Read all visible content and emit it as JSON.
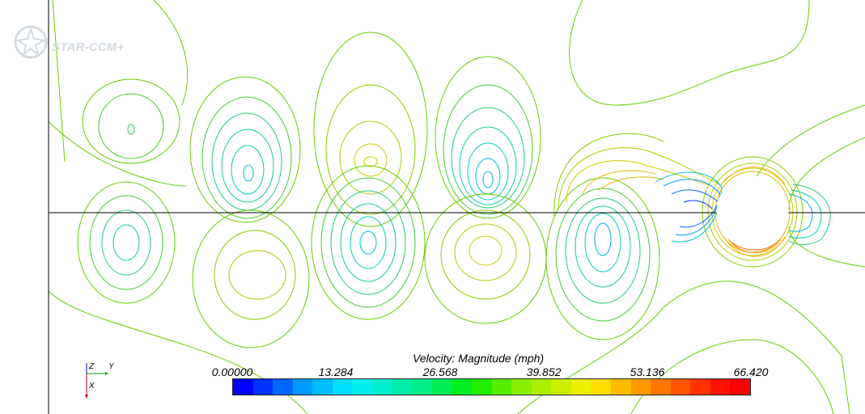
{
  "app": {
    "watermark": "STAR-CCM+"
  },
  "scene": {
    "field": "Velocity: Magnitude (mph)",
    "background": "#ffffff",
    "cylinder_fill": "#ffffff",
    "centerline_color": "#000000"
  },
  "axes_triad": {
    "labels": [
      "Z",
      "Y",
      "X"
    ],
    "colors": {
      "Z": "#0000ff",
      "Y": "#00a000",
      "X": "#c00000"
    }
  },
  "legend": {
    "title": "Velocity: Magnitude (mph)",
    "ticks": [
      "0.00000",
      "13.284",
      "26.568",
      "39.852",
      "53.136",
      "66.420"
    ],
    "range": [
      0.0,
      66.42
    ],
    "colors": [
      "#0000ff",
      "#0033ff",
      "#0066ff",
      "#0099ff",
      "#00bbff",
      "#00ddff",
      "#00eeee",
      "#00eecc",
      "#00eeaa",
      "#00ee88",
      "#00ee55",
      "#00ee22",
      "#22ee00",
      "#55ee00",
      "#88ee00",
      "#aaee00",
      "#ccee00",
      "#eeee00",
      "#ffdd00",
      "#ffbb00",
      "#ff9900",
      "#ff7700",
      "#ff5500",
      "#ff3300",
      "#ff1100",
      "#ff0000"
    ]
  }
}
